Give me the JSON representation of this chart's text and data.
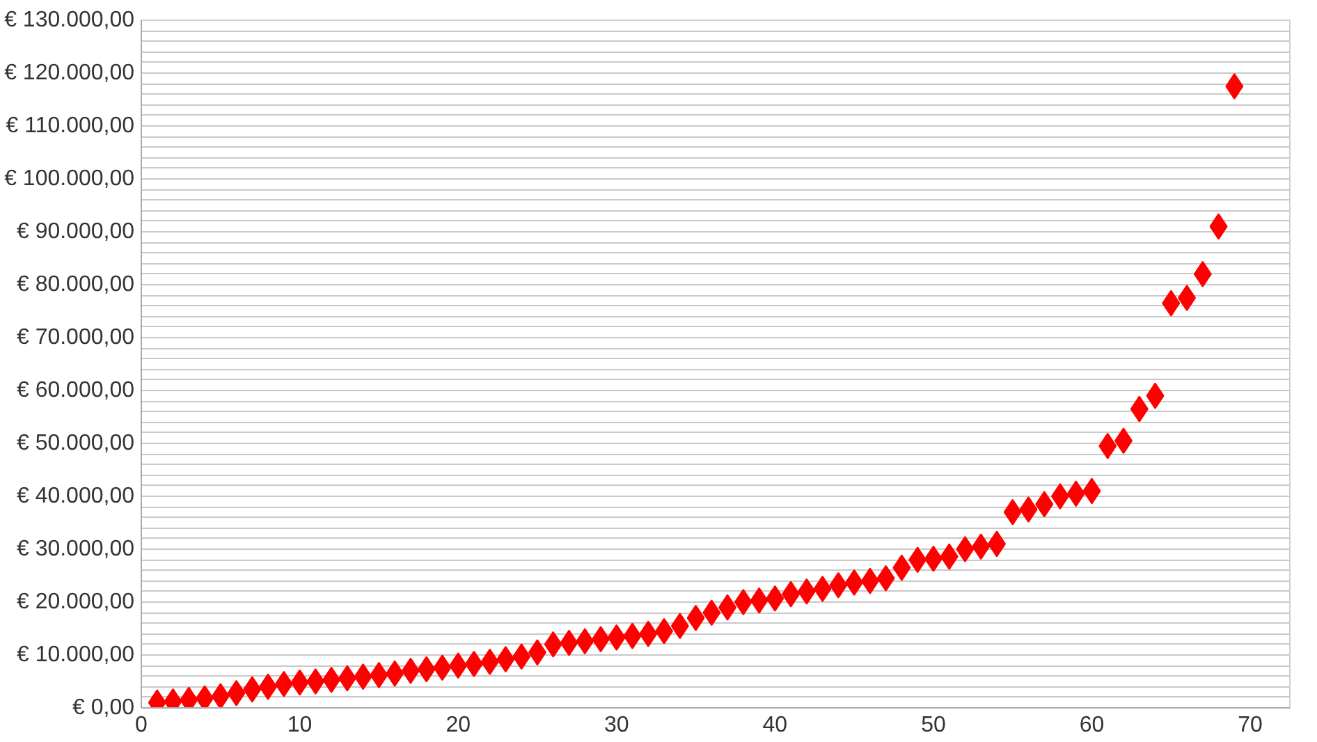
{
  "chart_data": {
    "type": "scatter",
    "marker": "diamond",
    "grid": "y",
    "x": [
      1,
      2,
      3,
      4,
      5,
      6,
      7,
      8,
      9,
      10,
      11,
      12,
      13,
      14,
      15,
      16,
      17,
      18,
      19,
      20,
      21,
      22,
      23,
      24,
      25,
      26,
      27,
      28,
      29,
      30,
      31,
      32,
      33,
      34,
      35,
      36,
      37,
      38,
      39,
      40,
      41,
      42,
      43,
      44,
      45,
      46,
      47,
      48,
      49,
      50,
      51,
      52,
      53,
      54,
      55,
      56,
      57,
      58,
      59,
      60,
      61,
      62,
      63,
      64,
      65,
      66,
      67,
      68,
      69
    ],
    "series": [
      {
        "color": "#ff0000",
        "values": [
          1000,
          1200,
          1500,
          1800,
          2200,
          2800,
          3500,
          4000,
          4500,
          4800,
          5000,
          5300,
          5600,
          5900,
          6200,
          6500,
          7000,
          7300,
          7600,
          8000,
          8300,
          8700,
          9200,
          9700,
          10500,
          12000,
          12300,
          12600,
          13000,
          13300,
          13600,
          14000,
          14500,
          15500,
          17000,
          18000,
          19000,
          20000,
          20300,
          20700,
          21500,
          22000,
          22500,
          23200,
          23700,
          24000,
          24500,
          26500,
          28000,
          28200,
          28600,
          30000,
          30500,
          31000,
          37000,
          37500,
          38500,
          40000,
          40500,
          41000,
          49500,
          50500,
          56500,
          59000,
          76500,
          77500,
          82000,
          91000,
          117500
        ]
      }
    ],
    "xlim": [
      0,
      72.5
    ],
    "xticks": [
      0,
      10,
      20,
      30,
      40,
      50,
      60,
      70
    ],
    "ylim": [
      0,
      130000
    ],
    "yticks": [
      {
        "value": 0,
        "label": "€ 0,00"
      },
      {
        "value": 2000,
        "label": null
      },
      {
        "value": 4000,
        "label": null
      },
      {
        "value": 6000,
        "label": null
      },
      {
        "value": 8000,
        "label": null
      },
      {
        "value": 10000,
        "label": "€ 10.000,00"
      },
      {
        "value": 12000,
        "label": null
      },
      {
        "value": 14000,
        "label": null
      },
      {
        "value": 16000,
        "label": null
      },
      {
        "value": 18000,
        "label": null
      },
      {
        "value": 20000,
        "label": "€ 20.000,00"
      },
      {
        "value": 22000,
        "label": null
      },
      {
        "value": 24000,
        "label": null
      },
      {
        "value": 26000,
        "label": null
      },
      {
        "value": 28000,
        "label": null
      },
      {
        "value": 30000,
        "label": "€ 30.000,00"
      },
      {
        "value": 32000,
        "label": null
      },
      {
        "value": 34000,
        "label": null
      },
      {
        "value": 36000,
        "label": null
      },
      {
        "value": 38000,
        "label": null
      },
      {
        "value": 40000,
        "label": "€ 40.000,00"
      },
      {
        "value": 42000,
        "label": null
      },
      {
        "value": 44000,
        "label": null
      },
      {
        "value": 46000,
        "label": null
      },
      {
        "value": 48000,
        "label": null
      },
      {
        "value": 50000,
        "label": "€ 50.000,00"
      },
      {
        "value": 52000,
        "label": null
      },
      {
        "value": 54000,
        "label": null
      },
      {
        "value": 56000,
        "label": null
      },
      {
        "value": 58000,
        "label": null
      },
      {
        "value": 60000,
        "label": "€ 60.000,00"
      },
      {
        "value": 62000,
        "label": null
      },
      {
        "value": 64000,
        "label": null
      },
      {
        "value": 66000,
        "label": null
      },
      {
        "value": 68000,
        "label": null
      },
      {
        "value": 70000,
        "label": "€ 70.000,00"
      },
      {
        "value": 72000,
        "label": null
      },
      {
        "value": 74000,
        "label": null
      },
      {
        "value": 76000,
        "label": null
      },
      {
        "value": 78000,
        "label": null
      },
      {
        "value": 80000,
        "label": "€ 80.000,00"
      },
      {
        "value": 82000,
        "label": null
      },
      {
        "value": 84000,
        "label": null
      },
      {
        "value": 86000,
        "label": null
      },
      {
        "value": 88000,
        "label": null
      },
      {
        "value": 90000,
        "label": "€ 90.000,00"
      },
      {
        "value": 92000,
        "label": null
      },
      {
        "value": 94000,
        "label": null
      },
      {
        "value": 96000,
        "label": null
      },
      {
        "value": 98000,
        "label": null
      },
      {
        "value": 100000,
        "label": "€ 100.000,00"
      },
      {
        "value": 102000,
        "label": null
      },
      {
        "value": 104000,
        "label": null
      },
      {
        "value": 106000,
        "label": null
      },
      {
        "value": 108000,
        "label": null
      },
      {
        "value": 110000,
        "label": "€ 110.000,00"
      },
      {
        "value": 112000,
        "label": null
      },
      {
        "value": 114000,
        "label": null
      },
      {
        "value": 116000,
        "label": null
      },
      {
        "value": 118000,
        "label": null
      },
      {
        "value": 120000,
        "label": "€ 120.000,00"
      },
      {
        "value": 122000,
        "label": null
      },
      {
        "value": 124000,
        "label": null
      },
      {
        "value": 126000,
        "label": null
      },
      {
        "value": 128000,
        "label": null
      },
      {
        "value": 130000,
        "label": "€ 130.000,00"
      }
    ]
  }
}
